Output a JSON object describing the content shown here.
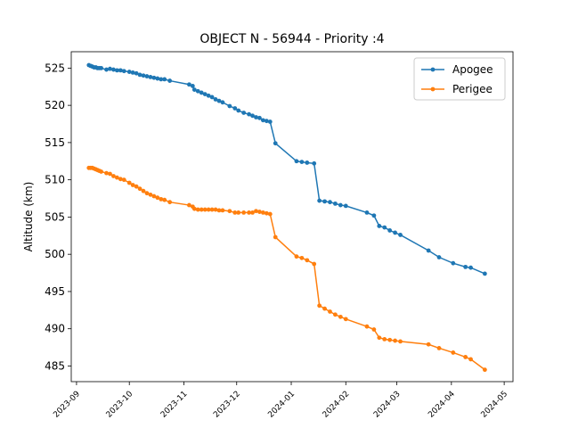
{
  "chart_data": {
    "type": "line",
    "title": "OBJECT N - 56944 - Priority :4",
    "xlabel": "",
    "ylabel": "Altitude (km)",
    "xlim": [
      "2023-08-29",
      "2024-05-06"
    ],
    "ylim": [
      482.9,
      527.2
    ],
    "xticks": [
      "2023-09",
      "2023-10",
      "2023-11",
      "2023-12",
      "2024-01",
      "2024-02",
      "2024-03",
      "2024-04",
      "2024-05"
    ],
    "yticks": [
      485,
      490,
      495,
      500,
      505,
      510,
      515,
      520,
      525
    ],
    "grid": false,
    "legend": "top-right",
    "colors": {
      "Apogee": "#1f77b4",
      "Perigee": "#ff7f0e"
    },
    "series": [
      {
        "name": "Apogee",
        "points": [
          [
            "2023-09-08",
            525.4
          ],
          [
            "2023-09-09",
            525.3
          ],
          [
            "2023-09-10",
            525.2
          ],
          [
            "2023-09-11",
            525.1
          ],
          [
            "2023-09-12",
            525.1
          ],
          [
            "2023-09-13",
            525.0
          ],
          [
            "2023-09-14",
            525.0
          ],
          [
            "2023-09-15",
            525.0
          ],
          [
            "2023-09-18",
            524.8
          ],
          [
            "2023-09-20",
            524.9
          ],
          [
            "2023-09-22",
            524.8
          ],
          [
            "2023-09-24",
            524.7
          ],
          [
            "2023-09-26",
            524.7
          ],
          [
            "2023-09-28",
            524.6
          ],
          [
            "2023-10-01",
            524.5
          ],
          [
            "2023-10-03",
            524.4
          ],
          [
            "2023-10-05",
            524.3
          ],
          [
            "2023-10-07",
            524.1
          ],
          [
            "2023-10-09",
            524.0
          ],
          [
            "2023-10-11",
            523.9
          ],
          [
            "2023-10-13",
            523.8
          ],
          [
            "2023-10-15",
            523.7
          ],
          [
            "2023-10-17",
            523.6
          ],
          [
            "2023-10-19",
            523.5
          ],
          [
            "2023-10-21",
            523.5
          ],
          [
            "2023-10-24",
            523.3
          ],
          [
            "2023-11-04",
            522.8
          ],
          [
            "2023-11-06",
            522.6
          ],
          [
            "2023-11-07",
            522.1
          ],
          [
            "2023-11-09",
            521.9
          ],
          [
            "2023-11-11",
            521.7
          ],
          [
            "2023-11-13",
            521.5
          ],
          [
            "2023-11-15",
            521.3
          ],
          [
            "2023-11-17",
            521.1
          ],
          [
            "2023-11-19",
            520.8
          ],
          [
            "2023-11-21",
            520.6
          ],
          [
            "2023-11-23",
            520.4
          ],
          [
            "2023-11-27",
            519.9
          ],
          [
            "2023-11-30",
            519.6
          ],
          [
            "2023-12-02",
            519.3
          ],
          [
            "2023-12-05",
            519.0
          ],
          [
            "2023-12-08",
            518.8
          ],
          [
            "2023-12-10",
            518.6
          ],
          [
            "2023-12-12",
            518.4
          ],
          [
            "2023-12-14",
            518.3
          ],
          [
            "2023-12-16",
            518.0
          ],
          [
            "2023-12-18",
            517.9
          ],
          [
            "2023-12-20",
            517.8
          ],
          [
            "2023-12-23",
            514.9
          ],
          [
            "2024-01-04",
            512.5
          ],
          [
            "2024-01-07",
            512.4
          ],
          [
            "2024-01-10",
            512.3
          ],
          [
            "2024-01-14",
            512.2
          ],
          [
            "2024-01-17",
            507.2
          ],
          [
            "2024-01-20",
            507.1
          ],
          [
            "2024-01-23",
            507.0
          ],
          [
            "2024-01-26",
            506.8
          ],
          [
            "2024-01-29",
            506.6
          ],
          [
            "2024-02-01",
            506.5
          ],
          [
            "2024-02-13",
            505.6
          ],
          [
            "2024-02-17",
            505.2
          ],
          [
            "2024-02-20",
            503.8
          ],
          [
            "2024-02-23",
            503.6
          ],
          [
            "2024-02-26",
            503.2
          ],
          [
            "2024-02-29",
            502.9
          ],
          [
            "2024-03-03",
            502.6
          ],
          [
            "2024-03-19",
            500.5
          ],
          [
            "2024-03-25",
            499.6
          ],
          [
            "2024-04-02",
            498.8
          ],
          [
            "2024-04-09",
            498.3
          ],
          [
            "2024-04-12",
            498.2
          ],
          [
            "2024-04-20",
            497.4
          ]
        ]
      },
      {
        "name": "Perigee",
        "points": [
          [
            "2023-09-08",
            511.6
          ],
          [
            "2023-09-09",
            511.6
          ],
          [
            "2023-09-10",
            511.6
          ],
          [
            "2023-09-11",
            511.5
          ],
          [
            "2023-09-12",
            511.4
          ],
          [
            "2023-09-13",
            511.3
          ],
          [
            "2023-09-14",
            511.2
          ],
          [
            "2023-09-15",
            511.1
          ],
          [
            "2023-09-18",
            510.9
          ],
          [
            "2023-09-20",
            510.8
          ],
          [
            "2023-09-22",
            510.5
          ],
          [
            "2023-09-24",
            510.3
          ],
          [
            "2023-09-26",
            510.1
          ],
          [
            "2023-09-28",
            510.0
          ],
          [
            "2023-10-01",
            509.6
          ],
          [
            "2023-10-03",
            509.3
          ],
          [
            "2023-10-05",
            509.1
          ],
          [
            "2023-10-07",
            508.8
          ],
          [
            "2023-10-09",
            508.5
          ],
          [
            "2023-10-11",
            508.2
          ],
          [
            "2023-10-13",
            508.0
          ],
          [
            "2023-10-15",
            507.8
          ],
          [
            "2023-10-17",
            507.6
          ],
          [
            "2023-10-19",
            507.4
          ],
          [
            "2023-10-21",
            507.3
          ],
          [
            "2023-10-24",
            507.0
          ],
          [
            "2023-11-04",
            506.6
          ],
          [
            "2023-11-06",
            506.4
          ],
          [
            "2023-11-07",
            506.1
          ],
          [
            "2023-11-09",
            506.0
          ],
          [
            "2023-11-11",
            506.0
          ],
          [
            "2023-11-13",
            506.0
          ],
          [
            "2023-11-15",
            506.0
          ],
          [
            "2023-11-17",
            506.0
          ],
          [
            "2023-11-19",
            506.0
          ],
          [
            "2023-11-21",
            505.9
          ],
          [
            "2023-11-23",
            505.9
          ],
          [
            "2023-11-27",
            505.8
          ],
          [
            "2023-11-30",
            505.6
          ],
          [
            "2023-12-02",
            505.6
          ],
          [
            "2023-12-05",
            505.6
          ],
          [
            "2023-12-08",
            505.6
          ],
          [
            "2023-12-10",
            505.6
          ],
          [
            "2023-12-12",
            505.8
          ],
          [
            "2023-12-14",
            505.7
          ],
          [
            "2023-12-16",
            505.6
          ],
          [
            "2023-12-18",
            505.5
          ],
          [
            "2023-12-20",
            505.4
          ],
          [
            "2023-12-23",
            502.3
          ],
          [
            "2024-01-04",
            499.7
          ],
          [
            "2024-01-07",
            499.5
          ],
          [
            "2024-01-10",
            499.2
          ],
          [
            "2024-01-14",
            498.7
          ],
          [
            "2024-01-17",
            493.1
          ],
          [
            "2024-01-20",
            492.7
          ],
          [
            "2024-01-23",
            492.3
          ],
          [
            "2024-01-26",
            491.9
          ],
          [
            "2024-01-29",
            491.6
          ],
          [
            "2024-02-01",
            491.3
          ],
          [
            "2024-02-13",
            490.3
          ],
          [
            "2024-02-17",
            489.9
          ],
          [
            "2024-02-20",
            488.8
          ],
          [
            "2024-02-23",
            488.6
          ],
          [
            "2024-02-26",
            488.5
          ],
          [
            "2024-02-29",
            488.4
          ],
          [
            "2024-03-03",
            488.3
          ],
          [
            "2024-03-19",
            487.9
          ],
          [
            "2024-03-25",
            487.4
          ],
          [
            "2024-04-02",
            486.8
          ],
          [
            "2024-04-09",
            486.2
          ],
          [
            "2024-04-12",
            485.9
          ],
          [
            "2024-04-20",
            484.5
          ]
        ]
      }
    ]
  }
}
